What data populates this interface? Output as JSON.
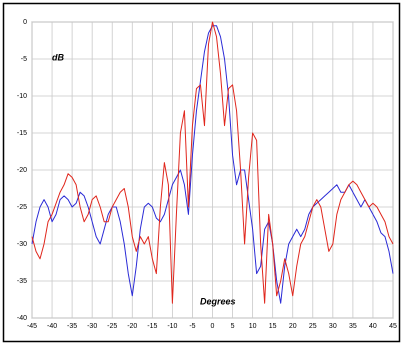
{
  "chart_data": {
    "type": "line",
    "y_label": "dB",
    "x_label": "Degrees",
    "x": [
      -45,
      -44,
      -43,
      -42,
      -41,
      -40,
      -39,
      -38,
      -37,
      -36,
      -35,
      -34,
      -33,
      -32,
      -31,
      -30,
      -29,
      -28,
      -27,
      -26,
      -25,
      -24,
      -23,
      -22,
      -21,
      -20,
      -19,
      -18,
      -17,
      -16,
      -15,
      -14,
      -13,
      -12,
      -11,
      -10,
      -9,
      -8,
      -7,
      -6,
      -5,
      -4,
      -3,
      -2,
      -1,
      0,
      1,
      2,
      3,
      4,
      5,
      6,
      7,
      8,
      9,
      10,
      11,
      12,
      13,
      14,
      15,
      16,
      17,
      18,
      19,
      20,
      21,
      22,
      23,
      24,
      25,
      26,
      27,
      28,
      29,
      30,
      31,
      32,
      33,
      34,
      35,
      36,
      37,
      38,
      39,
      40,
      41,
      42,
      43,
      44,
      45
    ],
    "series": [
      {
        "color": "#2b2bd6",
        "values": [
          -30,
          -27,
          -25,
          -24,
          -25,
          -27,
          -26,
          -24,
          -23.5,
          -24,
          -25,
          -24.5,
          -23,
          -23.5,
          -25,
          -27,
          -29,
          -30,
          -28,
          -26,
          -25,
          -25,
          -27,
          -30,
          -34,
          -37,
          -33,
          -28,
          -25,
          -24.5,
          -25,
          -26.5,
          -27,
          -26,
          -24,
          -22,
          -21,
          -20,
          -22,
          -26,
          -18,
          -12,
          -8,
          -4,
          -1.5,
          -0.5,
          -0.5,
          -2,
          -5,
          -10,
          -18,
          -22,
          -20,
          -20,
          -24,
          -28,
          -34,
          -33,
          -28,
          -27,
          -30,
          -35,
          -38,
          -33,
          -30,
          -29,
          -28,
          -29,
          -28,
          -26,
          -25,
          -24.5,
          -24,
          -23.5,
          -23,
          -22.5,
          -22,
          -23,
          -23,
          -22,
          -23,
          -24,
          -25,
          -24,
          -25,
          -26,
          -27,
          -28.5,
          -29,
          -31,
          -34
        ]
      },
      {
        "color": "#e0261c",
        "values": [
          -29,
          -31,
          -32,
          -30,
          -27,
          -26,
          -24.5,
          -23,
          -22,
          -20.5,
          -21,
          -22,
          -25,
          -27,
          -26,
          -24,
          -23.5,
          -25,
          -27,
          -27,
          -25,
          -24,
          -23,
          -22.5,
          -25,
          -29,
          -31,
          -29,
          -30,
          -29,
          -32,
          -34,
          -25,
          -19,
          -22,
          -38,
          -26,
          -15,
          -12,
          -25,
          -14,
          -9,
          -8.5,
          -14,
          -3,
          0,
          -2,
          -7,
          -14,
          -9,
          -8.5,
          -12,
          -20,
          -30,
          -21,
          -15,
          -16,
          -30,
          -38,
          -26,
          -30,
          -37,
          -35,
          -32,
          -34,
          -37,
          -33,
          -30,
          -29,
          -27,
          -25,
          -24,
          -25,
          -28,
          -31,
          -30,
          -26,
          -24,
          -23,
          -22,
          -21.5,
          -22,
          -23,
          -24,
          -25,
          -24.5,
          -25,
          -26,
          -27,
          -29,
          -30
        ]
      }
    ],
    "xlim": [
      -45,
      45
    ],
    "xticks": [
      -45,
      -40,
      -35,
      -30,
      -25,
      -20,
      -15,
      -10,
      -5,
      0,
      5,
      10,
      15,
      20,
      25,
      30,
      35,
      40,
      45
    ],
    "ylim": [
      -40,
      0
    ],
    "yticks": [
      0,
      -5,
      -10,
      -15,
      -20,
      -25,
      -30,
      -35,
      -40
    ],
    "grid": true
  }
}
